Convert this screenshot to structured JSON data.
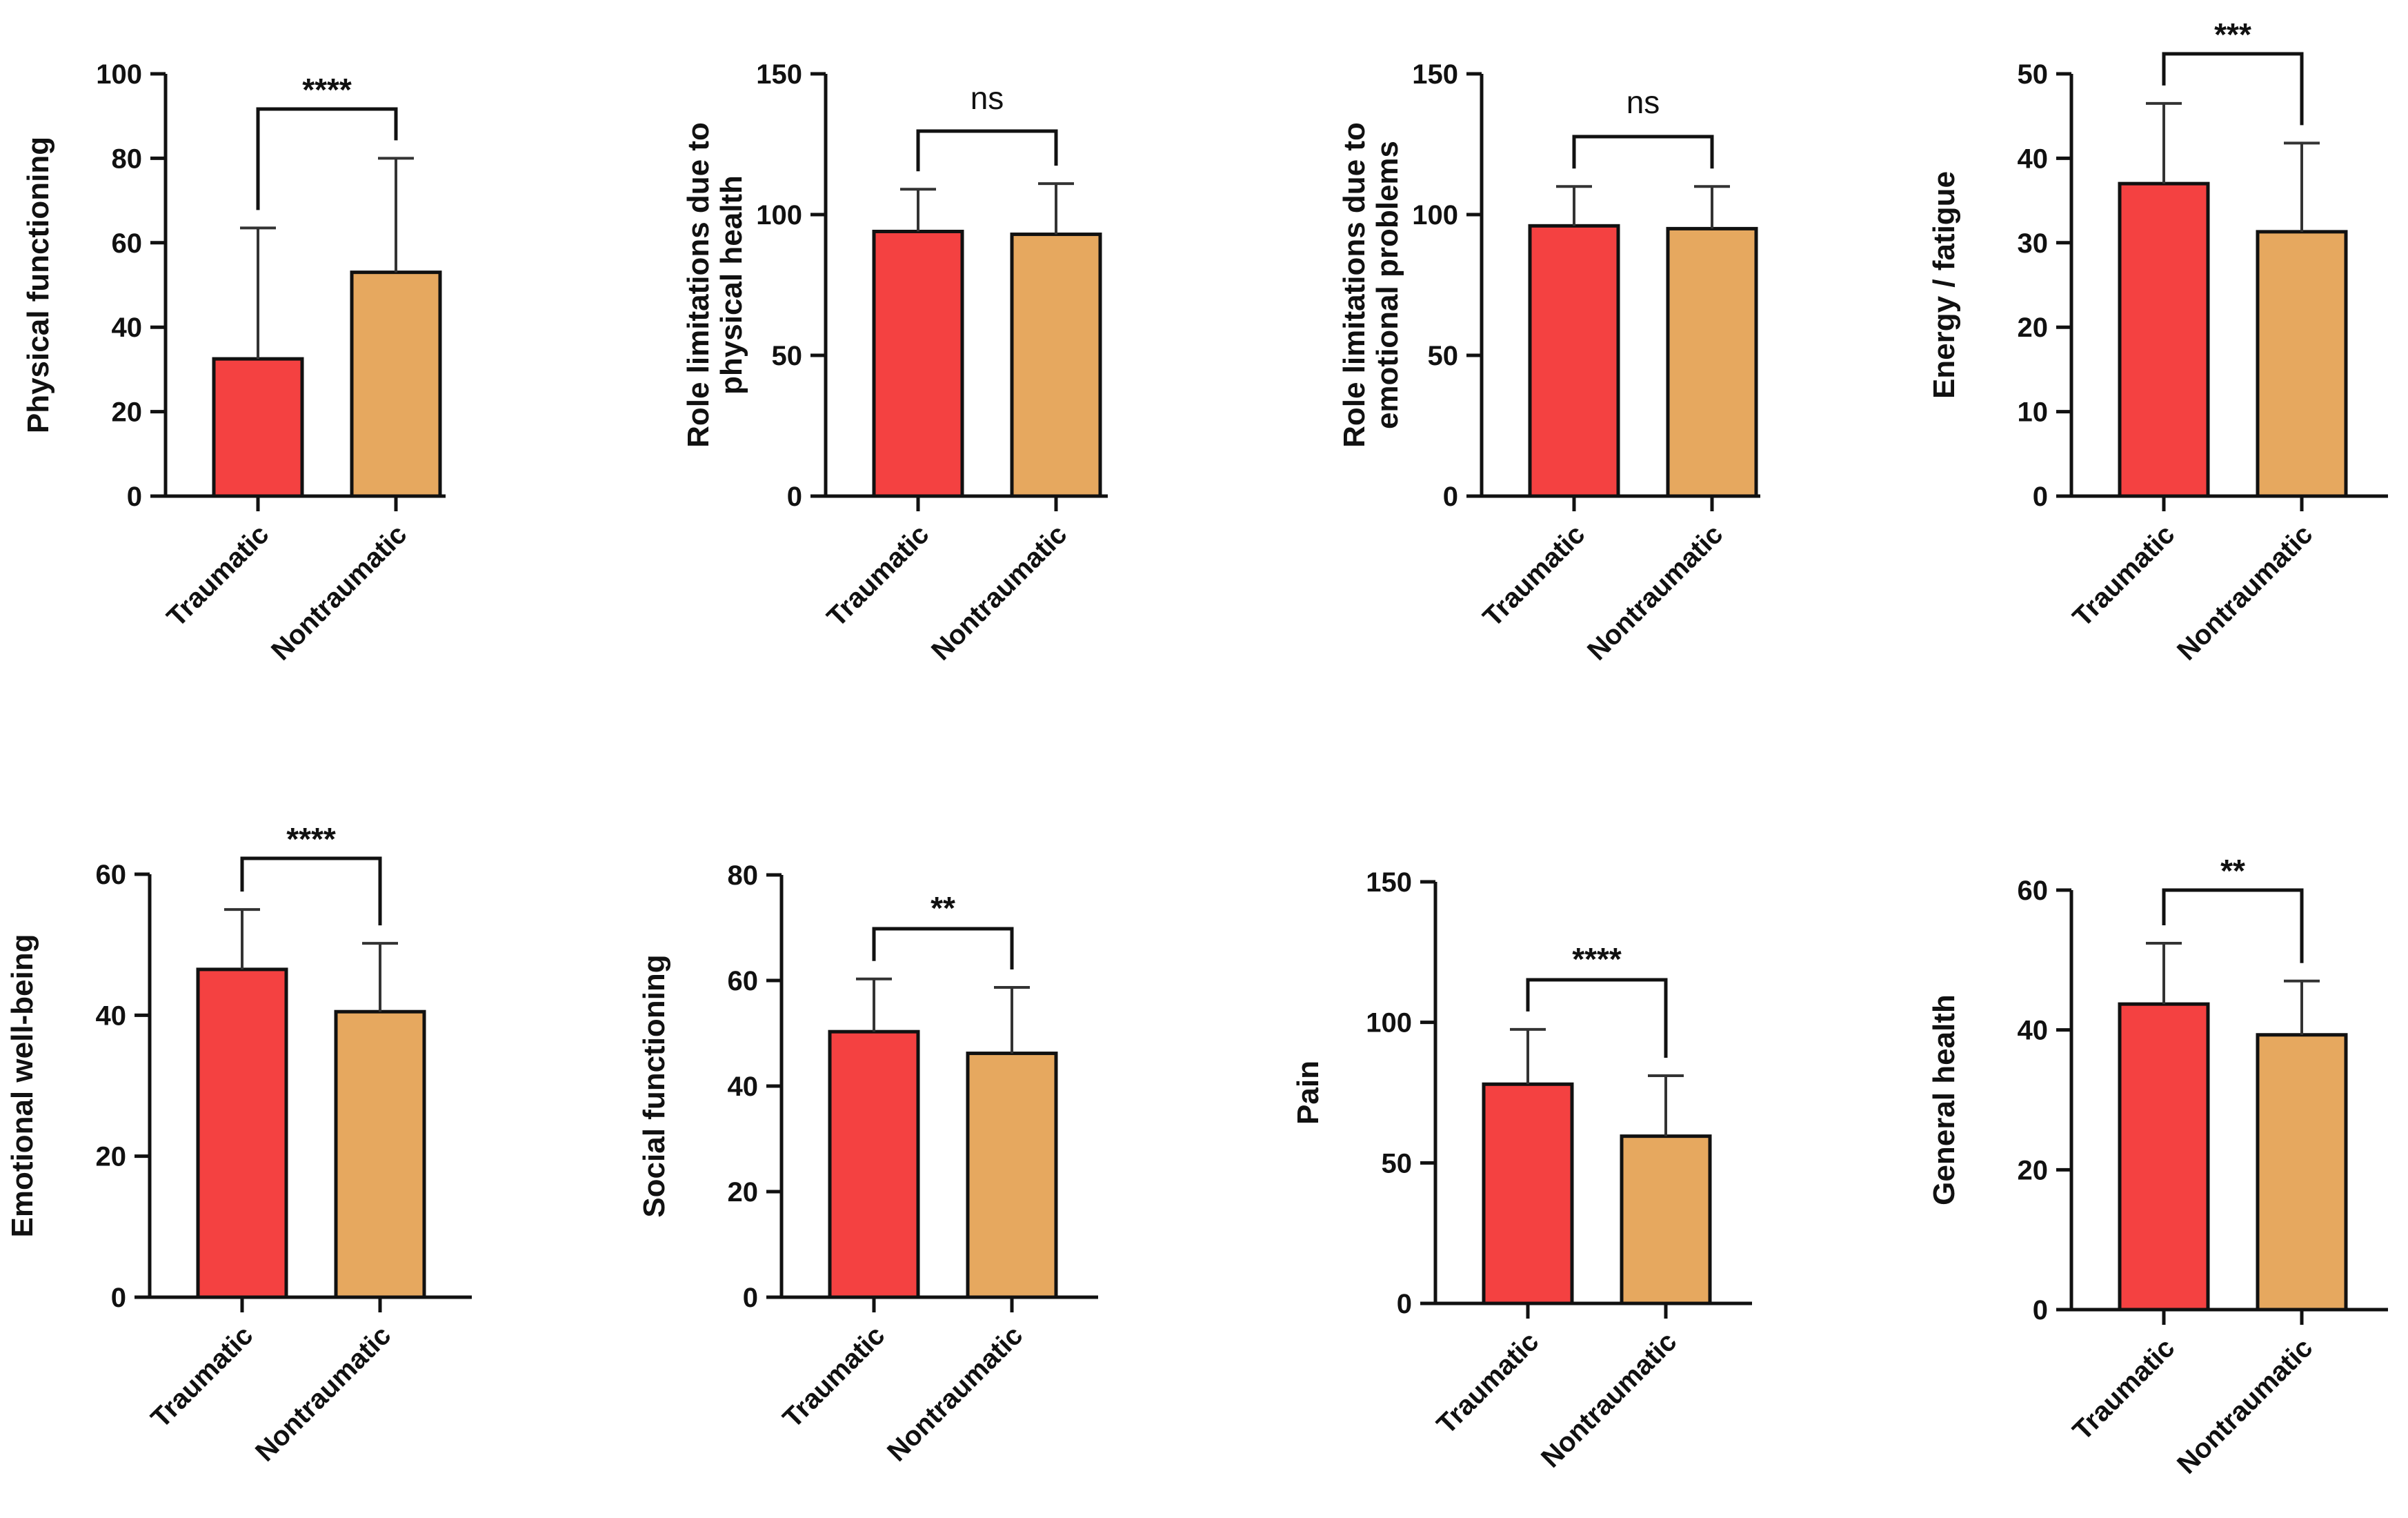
{
  "colors": {
    "traumatic": "#f44141",
    "nontraumatic": "#e6a85f",
    "axis": "#111111",
    "error": "#333333"
  },
  "chart_data": [
    {
      "type": "bar",
      "ylabel": [
        "Physical functioning"
      ],
      "categories": [
        "Traumatic",
        "Nontraumatic"
      ],
      "values": [
        32.5,
        53
      ],
      "errors": [
        31,
        27
      ],
      "ylim": [
        0,
        100
      ],
      "yticks": [
        0,
        20,
        40,
        60,
        80,
        100
      ],
      "significance": "****"
    },
    {
      "type": "bar",
      "ylabel": [
        "Role limitations due to",
        "physical health"
      ],
      "categories": [
        "Traumatic",
        "Nontraumatic"
      ],
      "values": [
        94,
        93
      ],
      "errors": [
        15,
        18
      ],
      "ylim": [
        0,
        150
      ],
      "yticks": [
        0,
        50,
        100,
        150
      ],
      "significance": "ns"
    },
    {
      "type": "bar",
      "ylabel": [
        "Role limitations due to",
        "emotional problems"
      ],
      "categories": [
        "Traumatic",
        "Nontraumatic"
      ],
      "values": [
        96,
        95
      ],
      "errors": [
        14,
        15
      ],
      "ylim": [
        0,
        150
      ],
      "yticks": [
        0,
        50,
        100,
        150
      ],
      "significance": "ns"
    },
    {
      "type": "bar",
      "ylabel": [
        "Energy / fatigue"
      ],
      "categories": [
        "Traumatic",
        "Nontraumatic"
      ],
      "values": [
        37,
        31.3
      ],
      "errors": [
        9.5,
        10.5
      ],
      "ylim": [
        0,
        50
      ],
      "yticks": [
        0,
        10,
        20,
        30,
        40,
        50
      ],
      "significance": "***"
    },
    {
      "type": "bar",
      "ylabel": [
        "Emotional well-being"
      ],
      "categories": [
        "Traumatic",
        "Nontraumatic"
      ],
      "values": [
        46.5,
        40.5
      ],
      "errors": [
        8.5,
        9.7
      ],
      "ylim": [
        0,
        60
      ],
      "yticks": [
        0,
        20,
        40,
        60
      ],
      "significance": "****"
    },
    {
      "type": "bar",
      "ylabel": [
        "Social functioning"
      ],
      "categories": [
        "Traumatic",
        "Nontraumatic"
      ],
      "values": [
        50.3,
        46.2
      ],
      "errors": [
        10,
        12.5
      ],
      "ylim": [
        0,
        80
      ],
      "yticks": [
        0,
        20,
        40,
        60,
        80
      ],
      "significance": "**"
    },
    {
      "type": "bar",
      "ylabel": [
        "Pain"
      ],
      "categories": [
        "Traumatic",
        "Nontraumatic"
      ],
      "values": [
        78,
        59.5
      ],
      "errors": [
        19.5,
        21.5
      ],
      "ylim": [
        0,
        150
      ],
      "yticks": [
        0,
        50,
        100,
        150
      ],
      "significance": "****"
    },
    {
      "type": "bar",
      "ylabel": [
        "General health"
      ],
      "categories": [
        "Traumatic",
        "Nontraumatic"
      ],
      "values": [
        43.7,
        39.3
      ],
      "errors": [
        8.7,
        7.7
      ],
      "ylim": [
        0,
        60
      ],
      "yticks": [
        0,
        20,
        40,
        60
      ],
      "significance": "**"
    }
  ]
}
